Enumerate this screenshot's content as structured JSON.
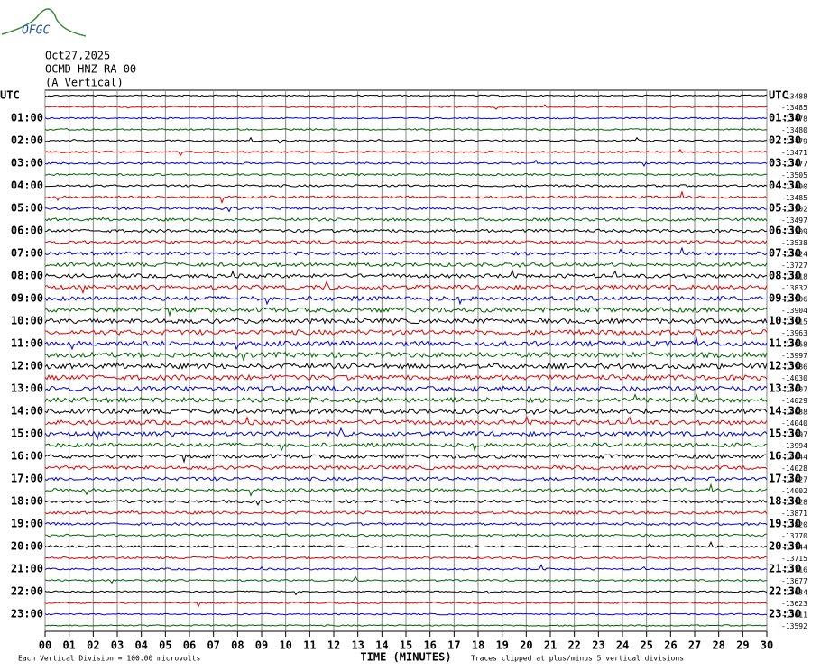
{
  "logo": "OFGC",
  "chart_data": {
    "type": "helicorder",
    "header": [
      "Oct27,2025",
      "OCMD HNZ RA 00",
      "(A Vertical)"
    ],
    "left_labels": [
      "UTC",
      "01:00",
      "02:00",
      "03:00",
      "04:00",
      "05:00",
      "06:00",
      "07:00",
      "08:00",
      "09:00",
      "10:00",
      "11:00",
      "12:00",
      "13:00",
      "14:00",
      "15:00",
      "16:00",
      "17:00",
      "18:00",
      "19:00",
      "20:00",
      "21:00",
      "22:00",
      "23:00"
    ],
    "right_labels": [
      "UTC",
      "01:30",
      "02:30",
      "03:30",
      "04:30",
      "05:30",
      "06:30",
      "07:30",
      "08:30",
      "09:30",
      "10:30",
      "11:30",
      "12:30",
      "13:30",
      "14:30",
      "15:30",
      "16:30",
      "17:30",
      "18:30",
      "19:30",
      "20:30",
      "21:30",
      "22:30",
      "23:30"
    ],
    "trace_offsets": [
      "-13488",
      "-13485",
      "-13478",
      "-13480",
      "-13479",
      "-13471",
      "-13477",
      "-13505",
      "-13490",
      "-13485",
      "-13502",
      "-13497",
      "-13509",
      "-13538",
      "-13624",
      "-13727",
      "-13818",
      "-13832",
      "-13906",
      "-13904",
      "-13915",
      "-13963",
      "-13968",
      "-13997",
      "-13986",
      "-14030",
      "-14007",
      "-14029",
      "-14038",
      "-14040",
      "-13997",
      "-13994",
      "-14044",
      "-14028",
      "-14027",
      "-14002",
      "-13928",
      "-13871",
      "-13820",
      "-13770",
      "-13744",
      "-13715",
      "-13716",
      "-13677",
      "-13634",
      "-13623",
      "-13611",
      "-13592"
    ],
    "trace_colors": [
      "#000000",
      "#e00000",
      "#0000d0",
      "#006000"
    ],
    "xlim": [
      0,
      30
    ],
    "xticks": [
      {
        "value": 0,
        "label": "00"
      },
      {
        "value": 1,
        "label": "01"
      },
      {
        "value": 2,
        "label": "02"
      },
      {
        "value": 3,
        "label": "03"
      },
      {
        "value": 4,
        "label": "04"
      },
      {
        "value": 5,
        "label": "05"
      },
      {
        "value": 6,
        "label": "06"
      },
      {
        "value": 7,
        "label": "07"
      },
      {
        "value": 8,
        "label": "08"
      },
      {
        "value": 9,
        "label": "09"
      },
      10,
      11,
      12,
      13,
      14,
      15,
      16,
      17,
      18,
      19,
      20,
      21,
      22,
      23,
      24,
      25,
      26,
      27,
      28,
      29,
      30
    ],
    "xlabel": "TIME (MINUTES)",
    "footnote_left": "Each Vertical Division =  100.00 microvolts",
    "footnote_right": "Traces clipped at plus/minus 5 vertical divisions",
    "grid": true
  }
}
